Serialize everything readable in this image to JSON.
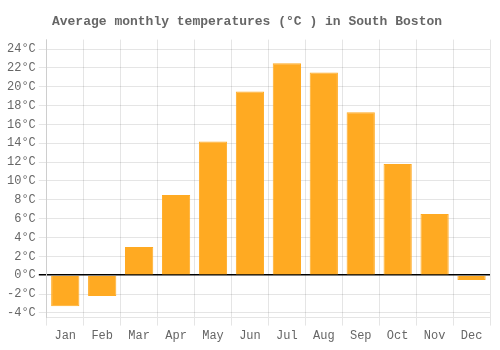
{
  "chart_data": {
    "type": "bar",
    "title": "Average monthly temperatures (°C ) in South Boston",
    "categories": [
      "Jan",
      "Feb",
      "Mar",
      "Apr",
      "May",
      "Jun",
      "Jul",
      "Aug",
      "Sep",
      "Oct",
      "Nov",
      "Dec"
    ],
    "values": [
      -3.3,
      -2.2,
      3.0,
      8.5,
      14.2,
      19.5,
      22.5,
      21.5,
      17.3,
      11.8,
      6.5,
      -0.5
    ],
    "color": "#FFAA22",
    "ylim": [
      -4.5,
      25
    ],
    "yticks": [
      {
        "value": -4,
        "label": "-4°C"
      },
      {
        "value": -2,
        "label": "-2°C"
      },
      {
        "value": 0,
        "label": "0°C"
      },
      {
        "value": 2,
        "label": "2°C"
      },
      {
        "value": 4,
        "label": "4°C"
      },
      {
        "value": 6,
        "label": "6°C"
      },
      {
        "value": 8,
        "label": "8°C"
      },
      {
        "value": 10,
        "label": "10°C"
      },
      {
        "value": 12,
        "label": "12°C"
      },
      {
        "value": 14,
        "label": "14°C"
      },
      {
        "value": 16,
        "label": "16°C"
      },
      {
        "value": 18,
        "label": "18°C"
      },
      {
        "value": 20,
        "label": "20°C"
      },
      {
        "value": 22,
        "label": "22°C"
      },
      {
        "value": 24,
        "label": "24°C"
      }
    ],
    "grid": true
  }
}
